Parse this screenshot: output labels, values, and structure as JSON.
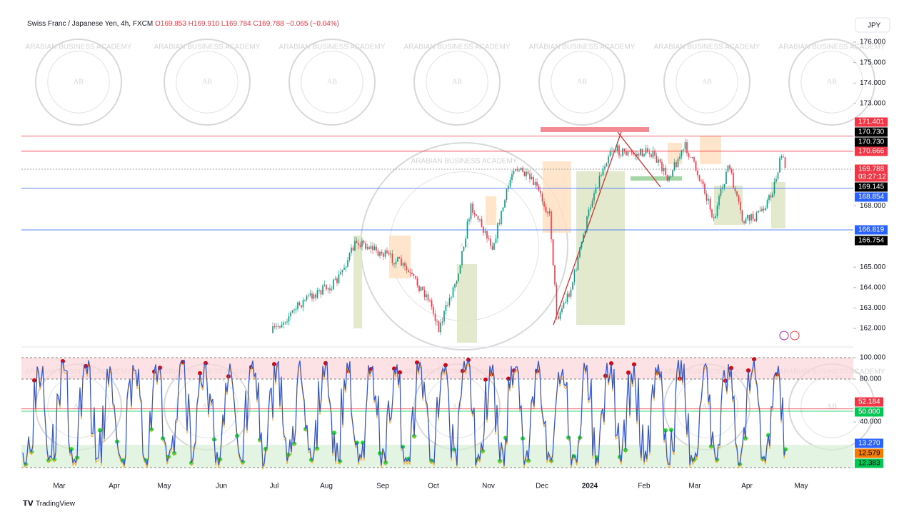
{
  "header": {
    "symbol": "Swiss Franc / Japanese Yen, 4h, FXCM",
    "open": "O169.853",
    "high": "H169.910",
    "low": "L169.784",
    "close": "C169.788",
    "change": "−0.065 (−0.04%)"
  },
  "currency": "JPY",
  "watermark": {
    "logo": "AB",
    "name": "ARABIAN BUSINESS ACADEMY"
  },
  "price_axis": {
    "ticks": [
      176,
      175,
      174,
      173,
      168,
      165,
      164,
      163,
      162
    ],
    "tick_labels": [
      "176.000",
      "175.000",
      "174.000",
      "173.000",
      "168.000",
      "165.000",
      "164.000",
      "163.000",
      "162.000"
    ],
    "tags": [
      {
        "value": "171.401",
        "color": "#f23645"
      },
      {
        "value": "170.730",
        "color": "#000000"
      },
      {
        "value": "170.730",
        "color": "#000000"
      },
      {
        "value": "170.666",
        "color": "#f23645"
      },
      {
        "value": "169.788",
        "color": "#f23645",
        "timer": "03:27:12"
      },
      {
        "value": "169.145",
        "color": "#000000"
      },
      {
        "value": "168.854",
        "color": "#2962ff"
      },
      {
        "value": "166.819",
        "color": "#2962ff"
      },
      {
        "value": "166.754",
        "color": "#000000"
      }
    ]
  },
  "oscillator_axis": {
    "ticks": [
      100,
      80,
      40
    ],
    "tick_labels": [
      "100.000",
      "80.000",
      "40.000"
    ],
    "tags": [
      {
        "value": "52.184",
        "color": "#f23645"
      },
      {
        "value": "50.000",
        "color": "#00c853"
      },
      {
        "value": "13.270",
        "color": "#2962ff"
      },
      {
        "value": "12.579",
        "color": "#f57c00"
      },
      {
        "value": "12.383",
        "color": "#00c853"
      }
    ]
  },
  "time_axis": [
    "Mar",
    "Apr",
    "May",
    "Jun",
    "Jul",
    "Aug",
    "Sep",
    "Oct",
    "Nov",
    "Dec",
    "2024",
    "Feb",
    "Mar",
    "Apr",
    "May"
  ],
  "branding": "TradingView"
}
